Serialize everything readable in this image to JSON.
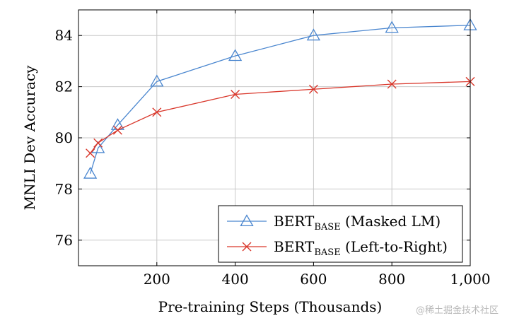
{
  "chart_data": {
    "type": "line",
    "xlabel": "Pre-training Steps (Thousands)",
    "ylabel": "MNLI Dev Accuracy",
    "xlim": [
      0,
      1000
    ],
    "ylim": [
      75,
      85
    ],
    "xticks": [
      200,
      400,
      600,
      800,
      1000
    ],
    "xtick_labels": [
      "200",
      "400",
      "600",
      "800",
      "1,000"
    ],
    "yticks": [
      76,
      78,
      80,
      82,
      84
    ],
    "yticks_labels": [
      "76",
      "78",
      "80",
      "82",
      "84"
    ],
    "grid": true,
    "legend_position": "bottom-right",
    "series": [
      {
        "name": "BERT",
        "name_sub": "BASE",
        "name_suffix": "(Masked LM)",
        "color": "#4a86cf",
        "marker": "triangle",
        "x": [
          30,
          50,
          100,
          200,
          400,
          600,
          800,
          1000
        ],
        "y": [
          78.6,
          79.6,
          80.5,
          82.2,
          83.2,
          84.0,
          84.3,
          84.4
        ]
      },
      {
        "name": "BERT",
        "name_sub": "BASE",
        "name_suffix": "(Left-to-Right)",
        "color": "#d9372b",
        "marker": "cross",
        "x": [
          30,
          50,
          100,
          200,
          400,
          600,
          800,
          1000
        ],
        "y": [
          79.4,
          79.8,
          80.3,
          81.0,
          81.7,
          81.9,
          82.1,
          82.2
        ]
      }
    ]
  },
  "watermark": "@稀土掘金技术社区"
}
